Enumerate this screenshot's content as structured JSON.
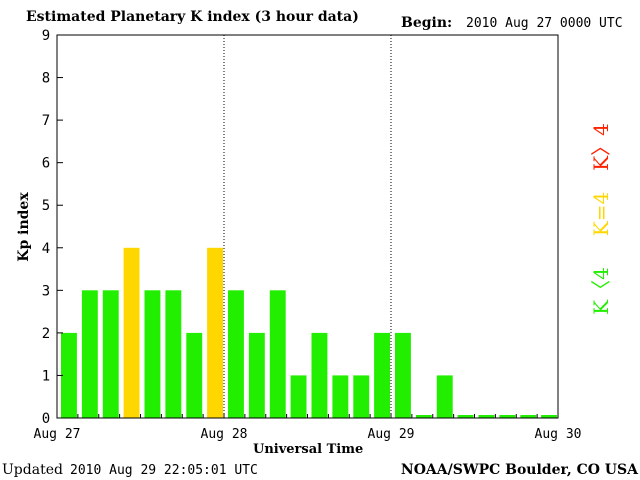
{
  "header": {
    "title": "Estimated Planetary K index (3 hour data)",
    "begin_label": "Begin:",
    "begin_value": "2010 Aug 27 0000 UTC"
  },
  "footer": {
    "updated_label": "Updated",
    "updated_value": "2010 Aug 29 22:05:01 UTC",
    "source": "NOAA/SWPC Boulder, CO USA"
  },
  "legend": {
    "high": "K〉4",
    "mid": "K=4",
    "low": "K〈4"
  },
  "colors": {
    "low": "#22ee00",
    "mid": "#ffd700",
    "high": "#ff2200"
  },
  "chart_data": {
    "type": "bar",
    "xlabel": "Universal Time",
    "ylabel": "Kp index",
    "ylim": [
      0,
      9
    ],
    "yticks": [
      0,
      1,
      2,
      3,
      4,
      5,
      6,
      7,
      8,
      9
    ],
    "xticks": [
      "Aug 27",
      "Aug 28",
      "Aug 29",
      "Aug 30"
    ],
    "day_dividers_after_interval": [
      8,
      16
    ],
    "interval_hours": 3,
    "start": "2010 Aug 27 0000 UTC",
    "values": [
      2,
      3,
      3,
      4,
      3,
      3,
      2,
      4,
      3,
      2,
      3,
      1,
      2,
      1,
      1,
      2,
      2,
      0,
      1,
      0,
      0,
      0,
      0,
      0
    ]
  }
}
